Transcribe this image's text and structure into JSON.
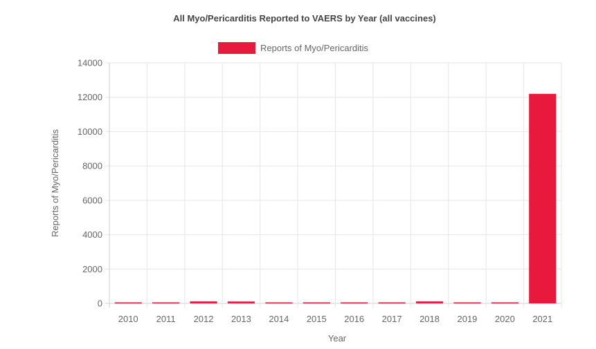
{
  "chart_data": {
    "type": "bar",
    "title": "All Myo/Pericarditis Reported to VAERS by Year (all vaccines)",
    "xlabel": "Year",
    "ylabel": "Reports of Myo/Pericarditis",
    "categories": [
      "2010",
      "2011",
      "2012",
      "2013",
      "2014",
      "2015",
      "2016",
      "2017",
      "2018",
      "2019",
      "2020",
      "2021"
    ],
    "series": [
      {
        "name": "Reports of Myo/Pericarditis",
        "values": [
          52,
          60,
          115,
          110,
          60,
          30,
          45,
          60,
          115,
          60,
          60,
          12200
        ]
      }
    ],
    "ylim": [
      0,
      14000
    ],
    "yticks": [
      "0",
      "2000",
      "4000",
      "6000",
      "8000",
      "10000",
      "12000",
      "14000"
    ],
    "color": "#e8193c",
    "grid": true,
    "legend_position": "top"
  }
}
